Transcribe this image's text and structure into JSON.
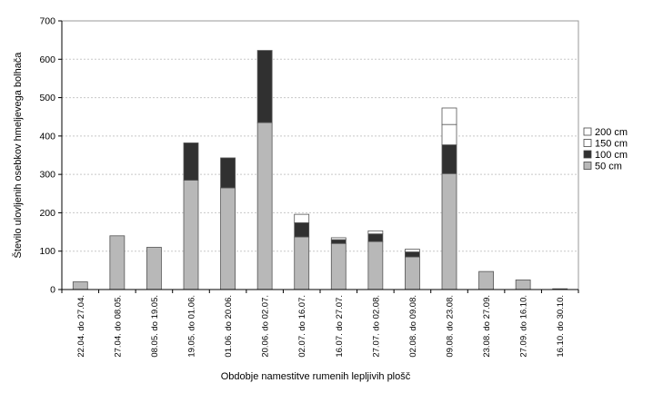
{
  "chart_data": {
    "type": "bar",
    "stacked": true,
    "xlabel": "Obdobje namestitve rumenih lepljivih plošč",
    "ylabel": "Število ulovljenih osebkov hmeljevega bolhača",
    "ylim": [
      0,
      700
    ],
    "yticks": [
      0,
      100,
      200,
      300,
      400,
      500,
      600,
      700
    ],
    "grid": "horizontal",
    "legend_position": "right",
    "categories": [
      "22.04. do 27.04.",
      "27.04. do 08.05.",
      "08.05. do 19.05.",
      "19.05. do 01.06.",
      "01.06. do 20.06.",
      "20.06. do 02.07.",
      "02.07. do 16.07.",
      "16.07. do 27.07.",
      "27.07. do 02.08.",
      "02.08. do 09.08.",
      "09.08. do 23.08.",
      "23.08. do 27.09.",
      "27.09. do 16.10.",
      "16.10. do 30.10."
    ],
    "series": [
      {
        "name": "50 cm",
        "color": "#b8b8b8",
        "values": [
          20,
          140,
          110,
          285,
          265,
          435,
          137,
          120,
          125,
          85,
          302,
          47,
          25,
          2
        ]
      },
      {
        "name": "100 cm",
        "color": "#303030",
        "values": [
          0,
          0,
          0,
          97,
          78,
          188,
          37,
          10,
          20,
          13,
          75,
          0,
          0,
          0
        ]
      },
      {
        "name": "150 cm",
        "color": "#ffffff",
        "values": [
          0,
          0,
          0,
          0,
          0,
          0,
          0,
          0,
          0,
          0,
          53,
          0,
          0,
          0
        ]
      },
      {
        "name": "200 cm",
        "color": "#ffffff",
        "values": [
          0,
          0,
          0,
          0,
          0,
          0,
          22,
          5,
          8,
          7,
          43,
          0,
          0,
          0
        ]
      }
    ]
  }
}
